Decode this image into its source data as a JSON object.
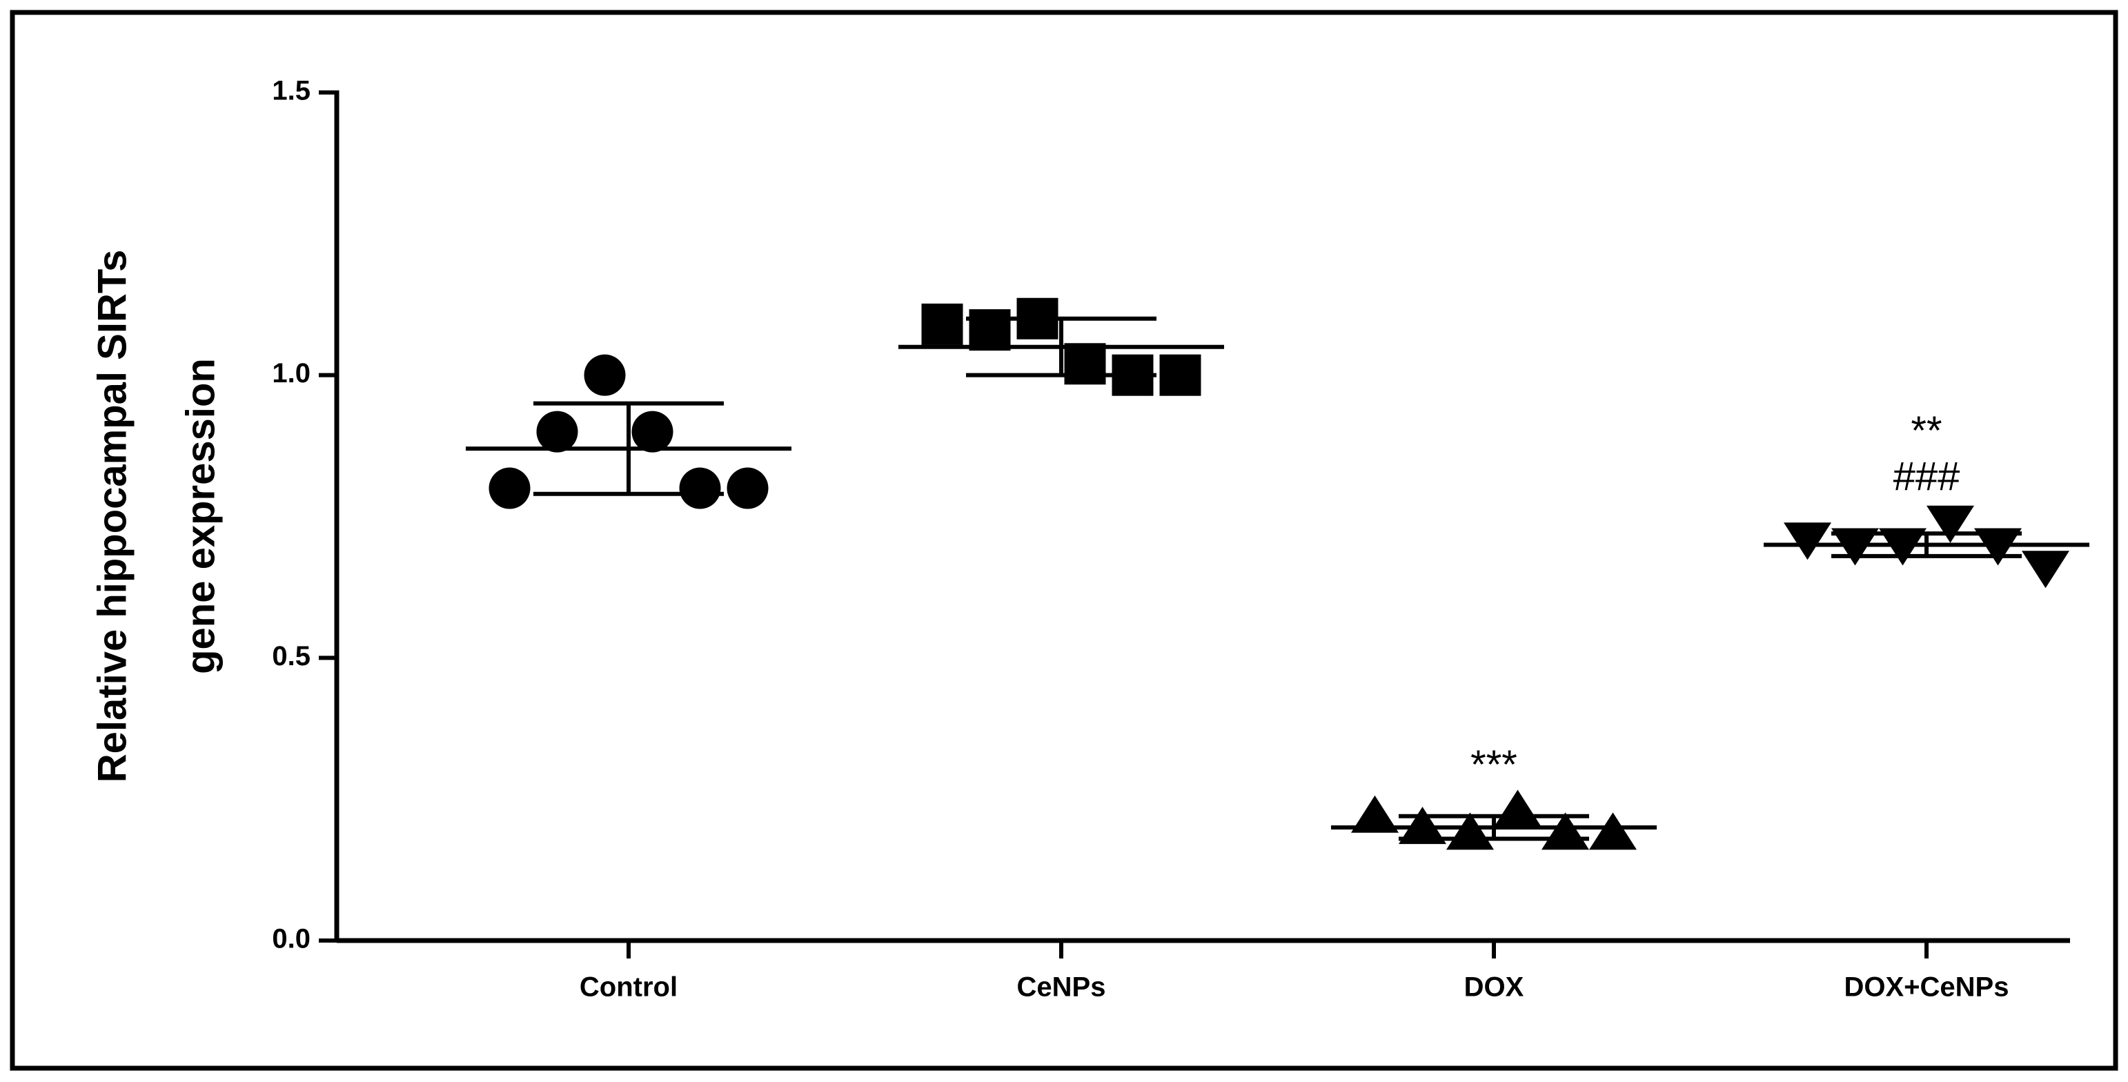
{
  "chart_data": {
    "type": "dot",
    "y_label": [
      "Relative hippocampal SIRTs",
      "gene expression"
    ],
    "categories": [
      "Control",
      "CeNPs",
      "DOX",
      "DOX+CeNPs"
    ],
    "markers": [
      "circle",
      "square",
      "triangle-up",
      "triangle-down"
    ],
    "color": "#000000",
    "values": [
      [
        0.8,
        0.9,
        1.0,
        0.9,
        0.8,
        0.8
      ],
      [
        1.09,
        1.08,
        1.1,
        1.02,
        1.0,
        1.0
      ],
      [
        0.22,
        0.2,
        0.19,
        0.23,
        0.19,
        0.19
      ],
      [
        0.71,
        0.7,
        0.7,
        0.74,
        0.7,
        0.66
      ]
    ],
    "mean": [
      0.87,
      1.05,
      0.2,
      0.7
    ],
    "sd": [
      0.08,
      0.05,
      0.02,
      0.02
    ],
    "annotations": [
      null,
      null,
      [
        "***"
      ],
      [
        "**",
        "###"
      ]
    ],
    "ylim": [
      0,
      1.5
    ],
    "yticks": [
      {
        "value": 0,
        "label": "0.0"
      },
      0.5,
      {
        "value": 1,
        "label": "1.0"
      },
      1.5
    ]
  }
}
